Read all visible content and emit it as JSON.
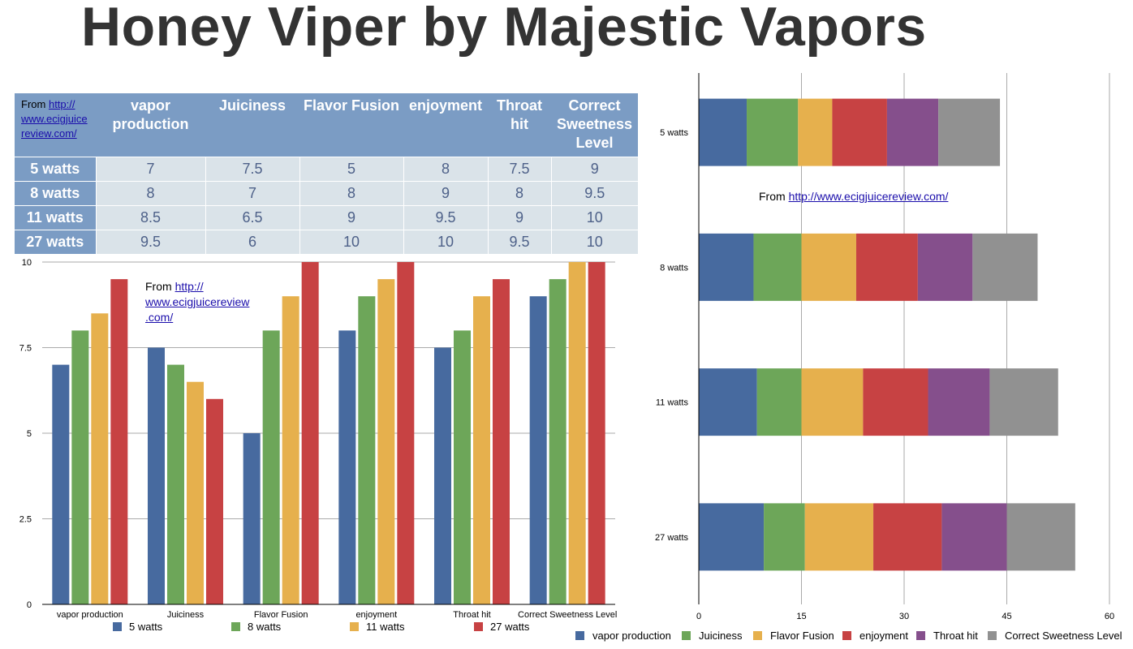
{
  "title": "Honey Viper by Majestic Vapors",
  "source": {
    "prefix": "From",
    "url": "http://www.ecigjuicereview.com/",
    "url_part1": "http://",
    "url_part2": "www.ecigjuice",
    "url_part3": "review.com/",
    "url_b1": "http://",
    "url_b2": "www.ecigjuicereview",
    "url_b3": ".com/"
  },
  "colors": {
    "5 watts": "#476a9f",
    "8 watts": "#6da659",
    "11 watts": "#e6b04d",
    "27 watts": "#c74243",
    "vapor production": "#476a9f",
    "Juiciness": "#6da659",
    "Flavor Fusion": "#e6b04d",
    "enjoyment": "#c74243",
    "Throat hit": "#854f8c",
    "Correct Sweetness Level": "#919191"
  },
  "table": {
    "headers": [
      "vapor production",
      "Juiciness",
      "Flavor Fusion",
      "enjoyment",
      "Throat hit",
      "Correct Sweetness Level"
    ],
    "rows": [
      {
        "label": "5 watts",
        "values": [
          "7",
          "7.5",
          "5",
          "8",
          "7.5",
          "9"
        ]
      },
      {
        "label": "8 watts",
        "values": [
          "8",
          "7",
          "8",
          "9",
          "8",
          "9.5"
        ]
      },
      {
        "label": "11 watts",
        "values": [
          "8.5",
          "6.5",
          "9",
          "9.5",
          "9",
          "10"
        ]
      },
      {
        "label": "27 watts",
        "values": [
          "9.5",
          "6",
          "10",
          "10",
          "9.5",
          "10"
        ]
      }
    ]
  },
  "chart_data": [
    {
      "type": "bar",
      "title": "",
      "categories": [
        "vapor production",
        "Juiciness",
        "Flavor Fusion",
        "enjoyment",
        "Throat hit",
        "Correct Sweetness Level"
      ],
      "series": [
        {
          "name": "5 watts",
          "values": [
            7,
            7.5,
            5,
            8,
            7.5,
            9
          ]
        },
        {
          "name": "8 watts",
          "values": [
            8,
            7,
            8,
            9,
            8,
            9.5
          ]
        },
        {
          "name": "11 watts",
          "values": [
            8.5,
            6.5,
            9,
            9.5,
            9,
            10
          ]
        },
        {
          "name": "27 watts",
          "values": [
            9.5,
            6,
            10,
            10,
            9.5,
            10
          ]
        }
      ],
      "ylim": [
        0,
        10
      ],
      "yticks": [
        "0",
        "2.5",
        "5",
        "7.5",
        "10"
      ],
      "grid": true,
      "legend": "bottom"
    },
    {
      "type": "bar",
      "orientation": "horizontal",
      "stacked": true,
      "title": "",
      "categories": [
        "5 watts",
        "8 watts",
        "11 watts",
        "27 watts"
      ],
      "series": [
        {
          "name": "vapor production",
          "values": [
            7,
            8,
            8.5,
            9.5
          ]
        },
        {
          "name": "Juiciness",
          "values": [
            7.5,
            7,
            6.5,
            6
          ]
        },
        {
          "name": "Flavor Fusion",
          "values": [
            5,
            8,
            9,
            10
          ]
        },
        {
          "name": "enjoyment",
          "values": [
            8,
            9,
            9.5,
            10
          ]
        },
        {
          "name": "Throat hit",
          "values": [
            7.5,
            8,
            9,
            9.5
          ]
        },
        {
          "name": "Correct Sweetness Level",
          "values": [
            9,
            9.5,
            10,
            10
          ]
        }
      ],
      "xlim": [
        0,
        60
      ],
      "xticks": [
        "0",
        "15",
        "30",
        "45",
        "60"
      ],
      "grid": true,
      "legend": "bottom"
    }
  ]
}
